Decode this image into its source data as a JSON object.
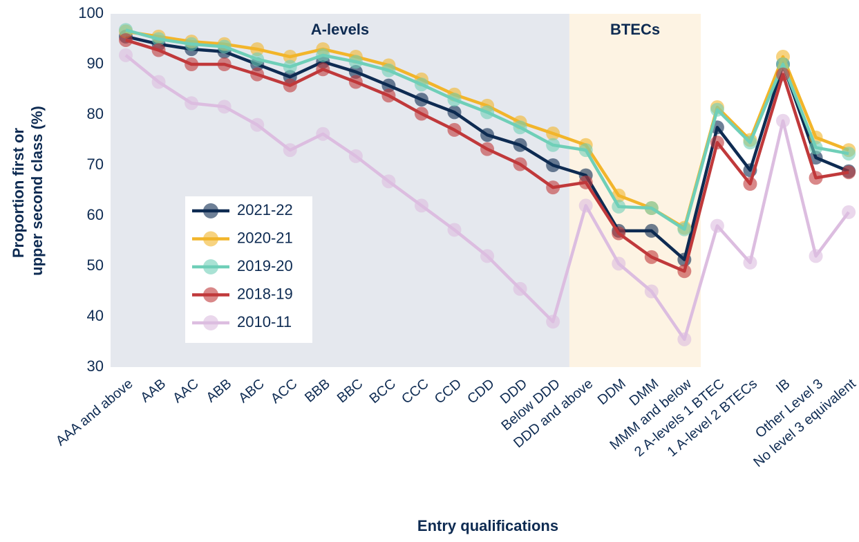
{
  "chart_data": {
    "type": "line",
    "xlabel": "Entry qualifications",
    "ylabel": [
      "Proportion first or",
      "upper second class (%)"
    ],
    "categories": [
      "AAA and above",
      "AAB",
      "AAC",
      "ABB",
      "ABC",
      "ACC",
      "BBB",
      "BBC",
      "BCC",
      "CCC",
      "CCD",
      "CDD",
      "DDD",
      "Below DDD",
      "DDD and above",
      "DDM",
      "DMM",
      "MMM and below",
      "2 A-levels 1 BTEC",
      "1 A-level 2 BTECs",
      "IB",
      "Other Level 3",
      "No level 3 equivalent"
    ],
    "regions": [
      {
        "label": "A-levels",
        "from": "AAA and above",
        "to": "Below DDD",
        "color": "#e5e8ee"
      },
      {
        "label": "BTECs",
        "from": "DDD and above",
        "to": "MMM and below",
        "color": "#fdf3e3"
      }
    ],
    "series": [
      {
        "name": "2021-22",
        "color": "#0e2b52",
        "values": [
          95.5,
          94,
          93,
          92.5,
          90,
          87.5,
          90.5,
          88.5,
          85.8,
          83,
          80.5,
          76,
          74,
          70,
          68,
          57,
          57,
          51.3,
          77.5,
          69,
          90,
          71.5,
          68.8
        ]
      },
      {
        "name": "2020-21",
        "color": "#f2b52b",
        "values": [
          96.5,
          95.5,
          94.5,
          94,
          93,
          91.5,
          93,
          91.5,
          89.8,
          87,
          84,
          81.8,
          78.5,
          76.3,
          74,
          64,
          61.5,
          57.6,
          81.5,
          75,
          91.5,
          75.5,
          73
        ]
      },
      {
        "name": "2019-20",
        "color": "#6fcfb8",
        "values": [
          96.8,
          95,
          94,
          93.5,
          91,
          89.5,
          91.8,
          90.5,
          88.8,
          86,
          83,
          80.5,
          77.5,
          74,
          73,
          61.8,
          61.5,
          57.3,
          81,
          74.5,
          90,
          73.5,
          72.3
        ]
      },
      {
        "name": "2018-19",
        "color": "#c0393b",
        "values": [
          94.8,
          92.8,
          90,
          90,
          88,
          85.8,
          89,
          86.5,
          83.8,
          80.2,
          77,
          73.2,
          70.2,
          65.6,
          66.6,
          56.5,
          51.8,
          49,
          74.5,
          66.3,
          88,
          67.5,
          68.6
        ]
      },
      {
        "name": "2010-11",
        "color": "#dcbde0",
        "values": [
          91.8,
          86.5,
          82.3,
          81.6,
          78,
          73,
          76.2,
          71.8,
          66.8,
          62,
          57.2,
          52,
          45.5,
          39,
          62,
          50.5,
          45,
          35.5,
          58,
          50.7,
          78.8,
          52,
          60.7
        ]
      }
    ],
    "ylim": [
      30,
      100
    ],
    "yticks": [
      30,
      40,
      50,
      60,
      70,
      80,
      90,
      100
    ]
  }
}
